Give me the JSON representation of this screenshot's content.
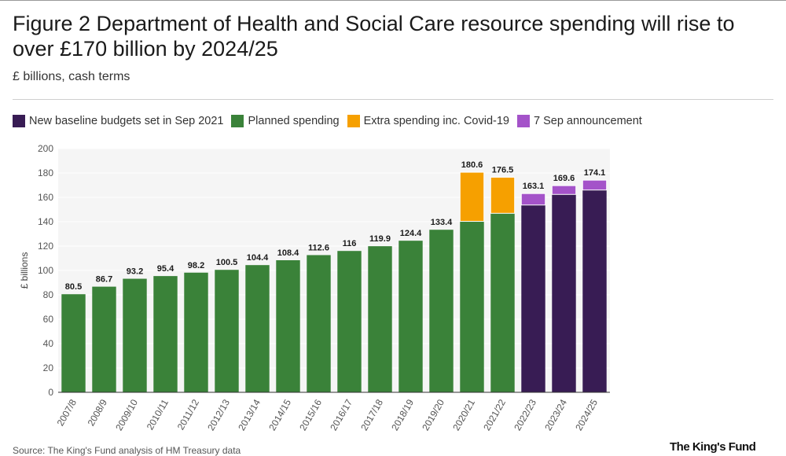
{
  "title": "Figure 2 Department of Health and Social Care resource spending will rise to over £170 billion by 2024/25",
  "subtitle": "£ billions, cash terms",
  "source": "Source: The King's Fund analysis of HM Treasury data",
  "logo": "The King's Fund",
  "colors": {
    "baseline": "#381c54",
    "planned": "#3a8239",
    "covid": "#f6a000",
    "announcement": "#a453c9",
    "plot_bg": "#f5f5f5"
  },
  "legend": [
    {
      "key": "baseline",
      "label": "New baseline budgets set in Sep 2021"
    },
    {
      "key": "planned",
      "label": "Planned spending"
    },
    {
      "key": "covid",
      "label": "Extra spending inc. Covid-19"
    },
    {
      "key": "announcement",
      "label": "7 Sep announcement"
    }
  ],
  "chart_data": {
    "type": "bar",
    "stacked": true,
    "title": "Figure 2 Department of Health and Social Care resource spending will rise to over £170 billion by 2024/25",
    "ylabel": "£ billions",
    "xlabel": "",
    "ylim": [
      0,
      200
    ],
    "yticks": [
      0,
      20,
      40,
      60,
      80,
      100,
      120,
      140,
      160,
      180,
      200
    ],
    "categories": [
      "2007/8",
      "2008/9",
      "2009/10",
      "2010/11",
      "2011/12",
      "2012/13",
      "2013/14",
      "2014/15",
      "2015/16",
      "2016/17",
      "2017/18",
      "2018/19",
      "2019/20",
      "2020/21",
      "2021/22",
      "2022/23",
      "2023/24",
      "2024/25"
    ],
    "series": [
      {
        "name": "New baseline budgets set in Sep 2021",
        "key": "baseline",
        "values": [
          0,
          0,
          0,
          0,
          0,
          0,
          0,
          0,
          0,
          0,
          0,
          0,
          0,
          0,
          0,
          153.7,
          162.4,
          166.0
        ]
      },
      {
        "name": "Planned spending",
        "key": "planned",
        "values": [
          80.5,
          86.7,
          93.2,
          95.4,
          98.2,
          100.5,
          104.4,
          108.4,
          112.6,
          116,
          119.9,
          124.4,
          133.4,
          140.3,
          146.9,
          0,
          0,
          0
        ]
      },
      {
        "name": "Extra spending inc. Covid-19",
        "key": "covid",
        "values": [
          0,
          0,
          0,
          0,
          0,
          0,
          0,
          0,
          0,
          0,
          0,
          0,
          0,
          40.3,
          29.6,
          0,
          0,
          0
        ]
      },
      {
        "name": "7 Sep announcement",
        "key": "announcement",
        "values": [
          0,
          0,
          0,
          0,
          0,
          0,
          0,
          0,
          0,
          0,
          0,
          0,
          0,
          0,
          0,
          9.4,
          7.2,
          8.1
        ]
      }
    ],
    "totals": [
      "80.5",
      "86.7",
      "93.2",
      "95.4",
      "98.2",
      "100.5",
      "104.4",
      "108.4",
      "112.6",
      "116",
      "119.9",
      "124.4",
      "133.4",
      "180.6",
      "176.5",
      "163.1",
      "169.6",
      "174.1"
    ]
  }
}
